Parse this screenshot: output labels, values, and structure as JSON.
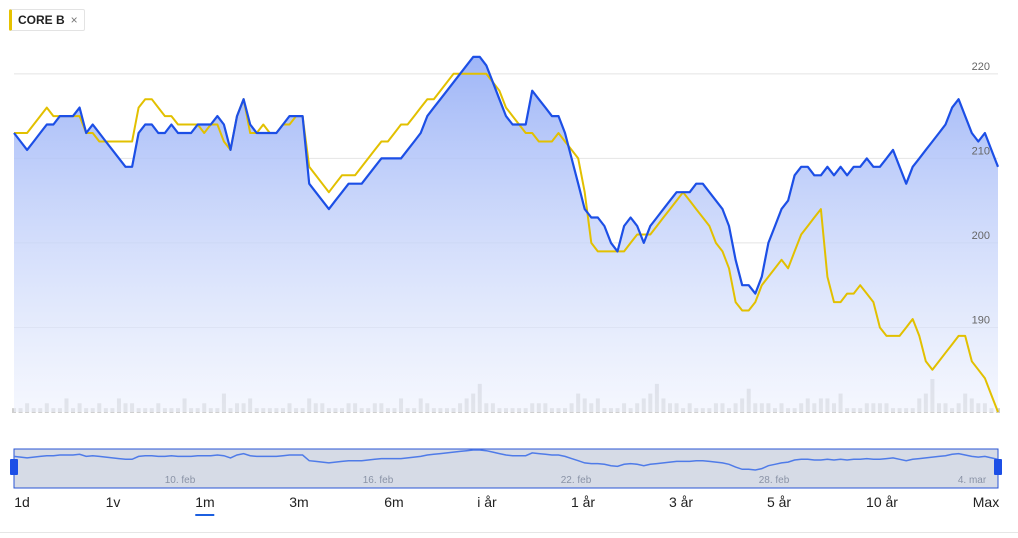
{
  "compare_chip": {
    "label": "CORE B",
    "close_glyph": "×",
    "color": "#e6c200"
  },
  "colors": {
    "main_line": "#1c4fe6",
    "compare_line": "#e2c000",
    "volume": "#cfcfcf",
    "navigator_fill": "#d6dbe6",
    "navigator_border": "#2a54d4",
    "grid": "#e4e4e4"
  },
  "navigator": {
    "labels": [
      "10. feb",
      "16. feb",
      "22. feb",
      "28. feb",
      "4. mar"
    ]
  },
  "range_tabs": [
    {
      "label": "1d",
      "active": false
    },
    {
      "label": "1v",
      "active": false
    },
    {
      "label": "1m",
      "active": true
    },
    {
      "label": "3m",
      "active": false
    },
    {
      "label": "6m",
      "active": false
    },
    {
      "label": "i år",
      "active": false
    },
    {
      "label": "1 år",
      "active": false
    },
    {
      "label": "3 år",
      "active": false
    },
    {
      "label": "5 år",
      "active": false
    },
    {
      "label": "10 år",
      "active": false
    },
    {
      "label": "Max",
      "active": false
    }
  ],
  "chart_data": {
    "type": "line",
    "title": "",
    "xlabel": "",
    "ylabel": "",
    "ylim": [
      180,
      224
    ],
    "yticks": [
      190,
      200,
      210,
      220
    ],
    "grid": true,
    "x_points": 151,
    "series": [
      {
        "name": "",
        "color": "#1c4fe6",
        "filled": true,
        "values": [
          213,
          212,
          211,
          212,
          213,
          214,
          214,
          215,
          215,
          215,
          216,
          213,
          214,
          213,
          212,
          211,
          210,
          209,
          209,
          213,
          214,
          214,
          213,
          213,
          214,
          213,
          213,
          213,
          214,
          214,
          214,
          215,
          214,
          211,
          215,
          217,
          214,
          213,
          213,
          213,
          213,
          214,
          215,
          215,
          215,
          207,
          206,
          205,
          204,
          205,
          206,
          207,
          207,
          207,
          208,
          209,
          210,
          210,
          210,
          210,
          211,
          212,
          213,
          215,
          216,
          217,
          218,
          219,
          220,
          221,
          222,
          222,
          221,
          219,
          217,
          215,
          214,
          214,
          214,
          218,
          217,
          216,
          215,
          215,
          213,
          210,
          207,
          204,
          203,
          203,
          202,
          200,
          199,
          202,
          203,
          202,
          200,
          202,
          203,
          204,
          205,
          206,
          206,
          206,
          207,
          207,
          206,
          205,
          204,
          202,
          198,
          195,
          195,
          194,
          196,
          200,
          202,
          204,
          205,
          208,
          209,
          209,
          208,
          208,
          209,
          208,
          209,
          208,
          209,
          209,
          210,
          209,
          209,
          210,
          211,
          209,
          207,
          209,
          210,
          211,
          212,
          213,
          214,
          216,
          217,
          215,
          213,
          212,
          213,
          211,
          209
        ]
      },
      {
        "name": "CORE B",
        "color": "#e2c000",
        "filled": false,
        "values": [
          213,
          213,
          213,
          214,
          215,
          216,
          215,
          215,
          215,
          215,
          215,
          213,
          213,
          212,
          212,
          212,
          212,
          212,
          212,
          216,
          217,
          217,
          216,
          215,
          215,
          214,
          214,
          214,
          214,
          213,
          214,
          214,
          212,
          211,
          215,
          217,
          213,
          213,
          214,
          213,
          213,
          214,
          214,
          215,
          215,
          209,
          208,
          207,
          206,
          207,
          208,
          208,
          208,
          209,
          210,
          211,
          212,
          212,
          213,
          214,
          214,
          215,
          216,
          217,
          217,
          218,
          219,
          220,
          220,
          220,
          220,
          220,
          220,
          219,
          218,
          216,
          215,
          214,
          213,
          213,
          212,
          212,
          212,
          213,
          212,
          211,
          210,
          206,
          200,
          199,
          199,
          199,
          199,
          199,
          200,
          201,
          201,
          201,
          202,
          203,
          204,
          205,
          206,
          205,
          204,
          203,
          202,
          200,
          199,
          197,
          193,
          192,
          192,
          193,
          195,
          196,
          197,
          198,
          197,
          199,
          201,
          202,
          203,
          204,
          196,
          193,
          193,
          194,
          194,
          195,
          194,
          193,
          190,
          189,
          189,
          189,
          190,
          191,
          189,
          186,
          185,
          186,
          187,
          188,
          189,
          189,
          186,
          185,
          184,
          182,
          180
        ]
      }
    ],
    "volume": [
      1,
      1,
      2,
      1,
      1,
      2,
      1,
      1,
      3,
      1,
      2,
      1,
      1,
      2,
      1,
      1,
      3,
      2,
      2,
      1,
      1,
      1,
      2,
      1,
      1,
      1,
      3,
      1,
      1,
      2,
      1,
      1,
      4,
      1,
      2,
      2,
      3,
      1,
      1,
      1,
      1,
      1,
      2,
      1,
      1,
      3,
      2,
      2,
      1,
      1,
      1,
      2,
      2,
      1,
      1,
      2,
      2,
      1,
      1,
      3,
      1,
      1,
      3,
      2,
      1,
      1,
      1,
      1,
      2,
      3,
      4,
      6,
      2,
      2,
      1,
      1,
      1,
      1,
      1,
      2,
      2,
      2,
      1,
      1,
      1,
      2,
      4,
      3,
      2,
      3,
      1,
      1,
      1,
      2,
      1,
      2,
      3,
      4,
      6,
      3,
      2,
      2,
      1,
      2,
      1,
      1,
      1,
      2,
      2,
      1,
      2,
      3,
      5,
      2,
      2,
      2,
      1,
      2,
      1,
      1,
      2,
      3,
      2,
      3,
      3,
      2,
      4,
      1,
      1,
      1,
      2,
      2,
      2,
      2,
      1,
      1,
      1,
      1,
      3,
      4,
      7,
      2,
      2,
      1,
      2,
      4,
      3,
      2,
      2,
      1,
      1
    ]
  }
}
